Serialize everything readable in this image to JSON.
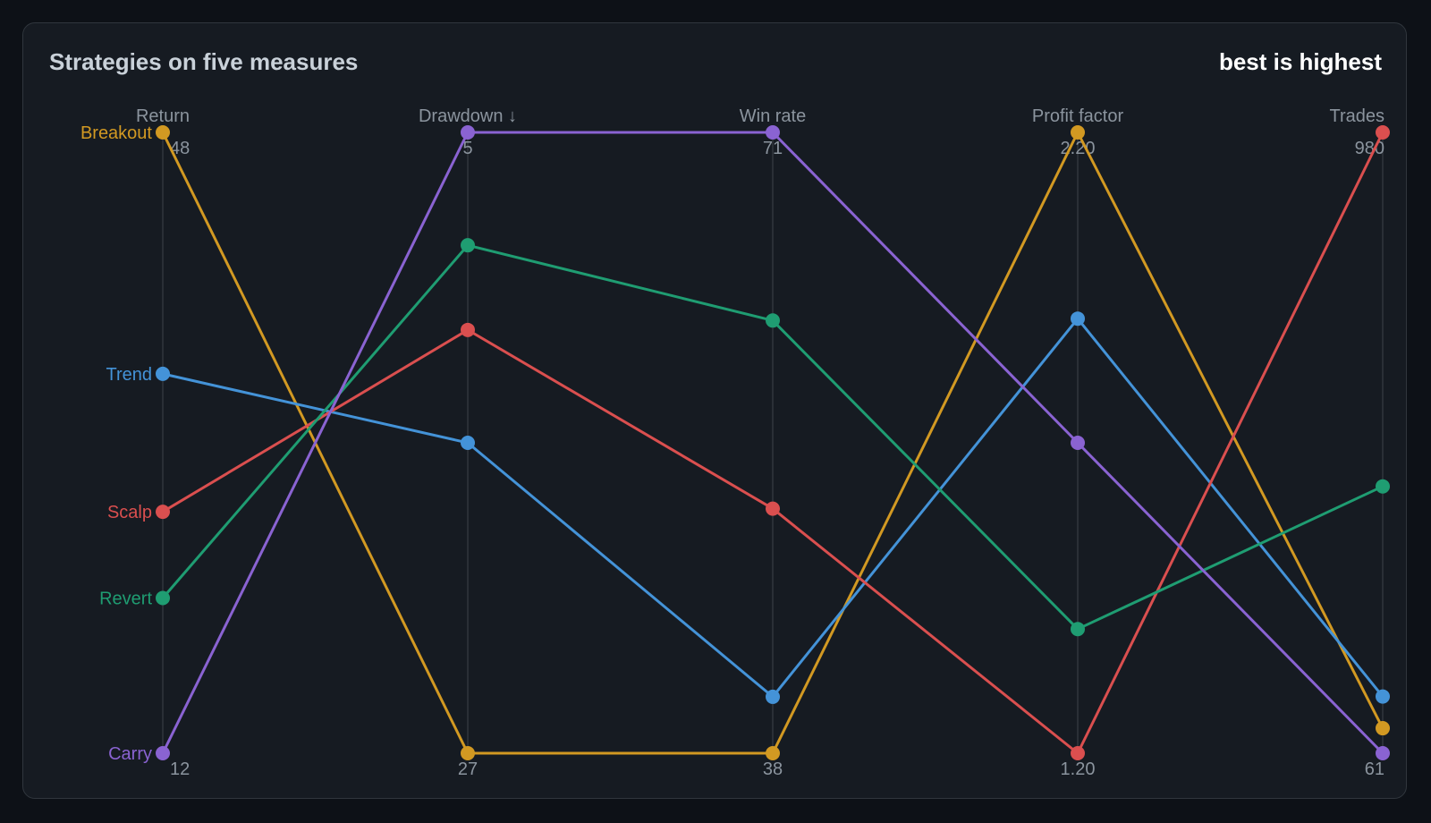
{
  "header": {
    "title": "Strategies on five measures",
    "subtitle": "best is highest"
  },
  "chart_data": {
    "type": "parallel-coordinates",
    "axes": [
      {
        "label": "Return",
        "min_label": "12",
        "max_label": "48",
        "min": 12,
        "max": 48,
        "inverted": false
      },
      {
        "label": "Drawdown ↓",
        "min_label": "27",
        "max_label": "5",
        "min": 5,
        "max": 27,
        "inverted": true
      },
      {
        "label": "Win rate",
        "min_label": "38",
        "max_label": "71",
        "min": 38,
        "max": 71,
        "inverted": false
      },
      {
        "label": "Profit factor",
        "min_label": "1.20",
        "max_label": "2.20",
        "min": 1.2,
        "max": 2.2,
        "inverted": false
      },
      {
        "label": "Trades",
        "min_label": "61",
        "max_label": "980",
        "min": 61,
        "max": 980,
        "inverted": false
      }
    ],
    "series": [
      {
        "name": "Breakout",
        "color": "#d29922",
        "values": [
          48,
          27,
          38,
          2.2,
          98
        ]
      },
      {
        "name": "Trend",
        "color": "#4493d8",
        "values": [
          34,
          16,
          41,
          1.9,
          145
        ]
      },
      {
        "name": "Scalp",
        "color": "#da4f4f",
        "values": [
          26,
          12,
          51,
          1.2,
          980
        ]
      },
      {
        "name": "Revert",
        "color": "#1f9d72",
        "values": [
          21,
          9,
          61,
          1.4,
          456
        ]
      },
      {
        "name": "Carry",
        "color": "#8a63d2",
        "values": [
          12,
          5,
          71,
          1.7,
          61
        ]
      }
    ],
    "grid": false,
    "legend": "left-inline"
  }
}
